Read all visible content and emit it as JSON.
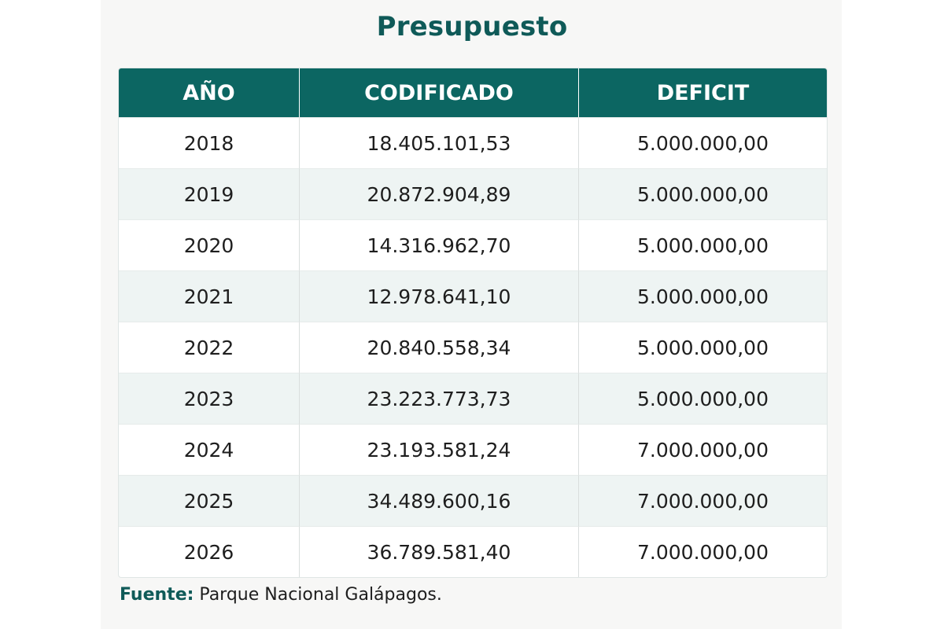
{
  "title": "Presupuesto",
  "table": {
    "headers": [
      "AÑO",
      "CODIFICADO",
      "DEFICIT"
    ],
    "rows": [
      [
        "2018",
        "18.405.101,53",
        "5.000.000,00"
      ],
      [
        "2019",
        "20.872.904,89",
        "5.000.000,00"
      ],
      [
        "2020",
        "14.316.962,70",
        "5.000.000,00"
      ],
      [
        "2021",
        "12.978.641,10",
        "5.000.000,00"
      ],
      [
        "2022",
        "20.840.558,34",
        "5.000.000,00"
      ],
      [
        "2023",
        "23.223.773,73",
        "5.000.000,00"
      ],
      [
        "2024",
        "23.193.581,24",
        "7.000.000,00"
      ],
      [
        "2025",
        "34.489.600,16",
        "7.000.000,00"
      ],
      [
        "2026",
        "36.789.581,40",
        "7.000.000,00"
      ]
    ]
  },
  "source": {
    "label": "Fuente:",
    "text": "Parque Nacional Galápagos."
  },
  "colors": {
    "header_bg": "#0c6662",
    "title": "#0f5a58",
    "alt_row_bg": "#eef4f3"
  }
}
